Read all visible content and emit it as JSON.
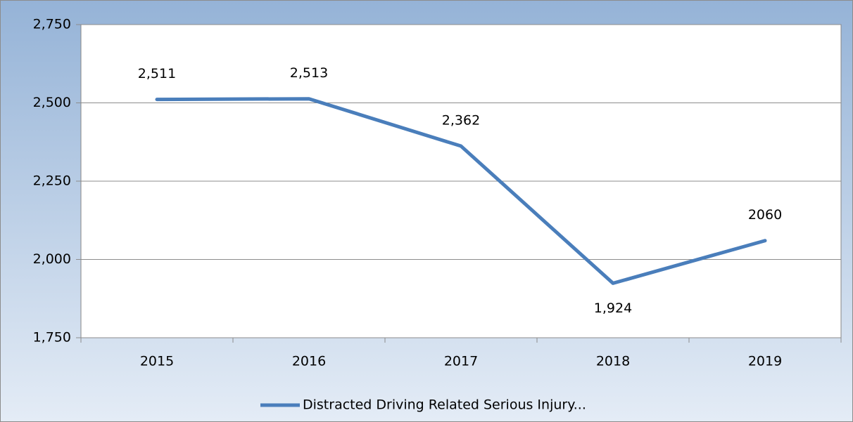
{
  "chart_data": {
    "type": "line",
    "categories": [
      "2015",
      "2016",
      "2017",
      "2018",
      "2019"
    ],
    "series": [
      {
        "name": "Distracted Driving Related Serious Injury...",
        "color": "#4a7ebb",
        "values": [
          2511,
          2513,
          2362,
          1924,
          2060
        ],
        "value_labels": [
          "2,511",
          "2,513",
          "2,362",
          "1,924",
          "2060"
        ]
      }
    ],
    "ylim": [
      1750,
      2750
    ],
    "yticks": [
      {
        "value": 1750,
        "label": "1,750"
      },
      {
        "value": 2000,
        "label": "2,000"
      },
      {
        "value": 2250,
        "label": "2,250"
      },
      {
        "value": 2500,
        "label": "2,500"
      },
      {
        "value": 2750,
        "label": "2,750"
      }
    ],
    "grid": true,
    "legend": "bottom"
  }
}
